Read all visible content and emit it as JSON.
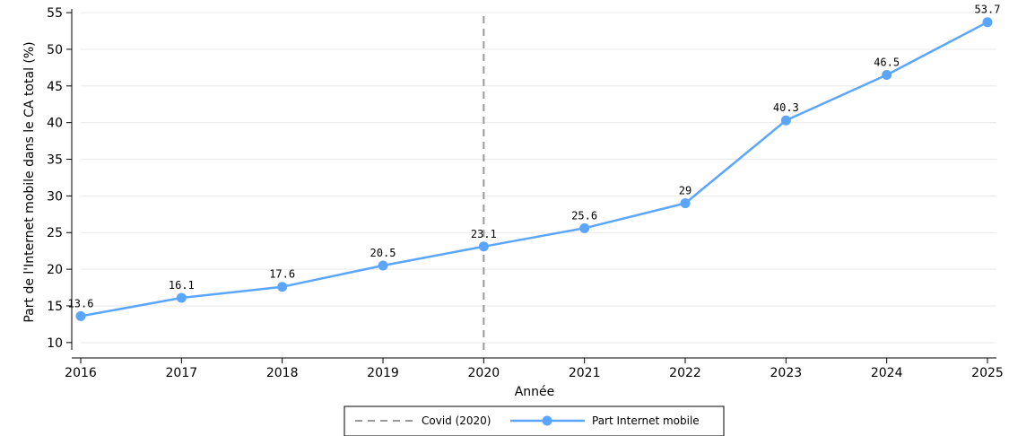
{
  "chart_data": {
    "type": "line",
    "xlabel": "Année",
    "ylabel": "Part de l'Internet mobile dans le CA total (%)",
    "xlim": [
      2016,
      2025
    ],
    "ylim": [
      9,
      55.5
    ],
    "yticks": [
      10,
      15,
      20,
      25,
      30,
      35,
      40,
      45,
      50,
      55
    ],
    "xticks": [
      2016,
      2017,
      2018,
      2019,
      2020,
      2021,
      2022,
      2023,
      2024,
      2025
    ],
    "grid": true,
    "legend_position": "bottom",
    "series": [
      {
        "name": "Part Internet mobile",
        "color": "#5aa6ff",
        "x": [
          2016,
          2017,
          2018,
          2019,
          2020,
          2021,
          2022,
          2023,
          2024,
          2025
        ],
        "values": [
          13.6,
          16.1,
          17.6,
          20.5,
          23.1,
          25.6,
          29,
          40.3,
          46.5,
          53.7
        ],
        "labels": [
          "13.6",
          "16.1",
          "17.6",
          "20.5",
          "23.1",
          "25.6",
          "29",
          "40.3",
          "46.5",
          "53.7"
        ]
      }
    ],
    "reference_lines": [
      {
        "name": "Covid (2020)",
        "x": 2020,
        "style": "dashed",
        "color": "#999999"
      }
    ]
  }
}
